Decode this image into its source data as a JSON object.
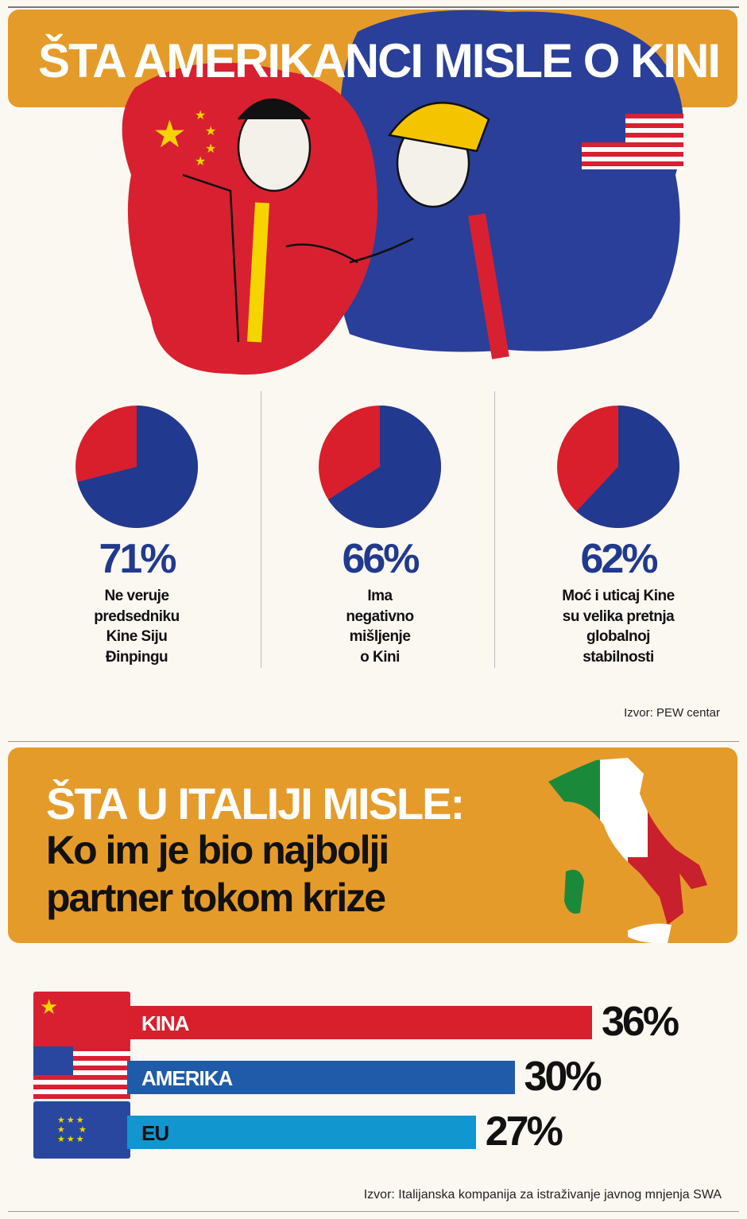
{
  "header": {
    "title": "ŠTA AMERIKANCI MISLE O KINI"
  },
  "colors": {
    "orange": "#e59b2a",
    "red": "#d91f2b",
    "blue": "#213a8f",
    "navy": "#1f5ba8",
    "lightblue": "#1196cf"
  },
  "chart_data": [
    {
      "type": "pie",
      "items": [
        {
          "value": 71,
          "label_pct": "71%",
          "lines": [
            "Ne veruje",
            "predsedniku",
            "Kine Siju",
            "Đinpingu"
          ]
        },
        {
          "value": 66,
          "label_pct": "66%",
          "lines": [
            "Ima",
            "negativno",
            "mišljenje",
            "o Kini"
          ]
        },
        {
          "value": 62,
          "label_pct": "62%",
          "lines": [
            "Moć i uticaj Kine",
            "su velika pretnja",
            "globalnoj",
            "stabilnosti"
          ]
        }
      ],
      "source": "Izvor:  PEW centar"
    },
    {
      "type": "bar",
      "title_white": "ŠTA U ITALIJI MISLE:",
      "title_lines": [
        "Ko im je bio najbolji",
        "partner tokom krize"
      ],
      "categories": [
        "KINA",
        "AMERIKA",
        "EU"
      ],
      "values": [
        36,
        30,
        27
      ],
      "value_labels": [
        "36%",
        "30%",
        "27%"
      ],
      "bar_colors": [
        "#d91f2b",
        "#1f5ba8",
        "#1196cf"
      ],
      "flags": [
        "china-flag",
        "usa-flag",
        "eu-flag"
      ],
      "source": "Izvor: Italijanska kompanija za istraživanje javnog mnjenja SWA"
    }
  ]
}
